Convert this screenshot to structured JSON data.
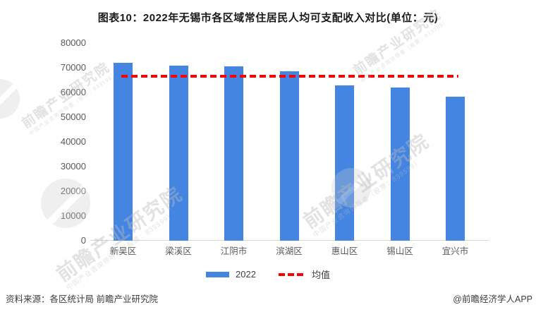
{
  "title": "图表10：2022年无锡市各区域常住居民人均可支配收入对比(单位：元)",
  "chart_data": {
    "type": "bar",
    "title": "图表10：2022年无锡市各区域常住居民人均可支配收入对比(单位：元)",
    "categories": [
      "新吴区",
      "梁溪区",
      "江阴市",
      "滨湖区",
      "惠山区",
      "锡山区",
      "宜兴市"
    ],
    "series": [
      {
        "name": "2022",
        "values": [
          72100,
          71000,
          70700,
          68600,
          62800,
          61900,
          58400
        ]
      }
    ],
    "mean_line": {
      "label": "均值",
      "value": 66500
    },
    "ylim": [
      0,
      80000
    ],
    "yticks": [
      0,
      10000,
      20000,
      30000,
      40000,
      50000,
      60000,
      70000,
      80000
    ],
    "xlabel": "",
    "ylabel": "",
    "grid": false,
    "legend_position": "bottom",
    "bar_color": "#4485E2",
    "mean_color": "#FA0000",
    "axis_color": "#D6D6D6",
    "tick_label_color": "#595959"
  },
  "footer": {
    "source": "资料来源：各区统计局 前瞻产业研究院",
    "credit": "@前瞻经济学人APP"
  },
  "watermark": {
    "text": "前瞻产业研究院",
    "subtext": "中国产业咨询领导者（股票：839599）"
  }
}
